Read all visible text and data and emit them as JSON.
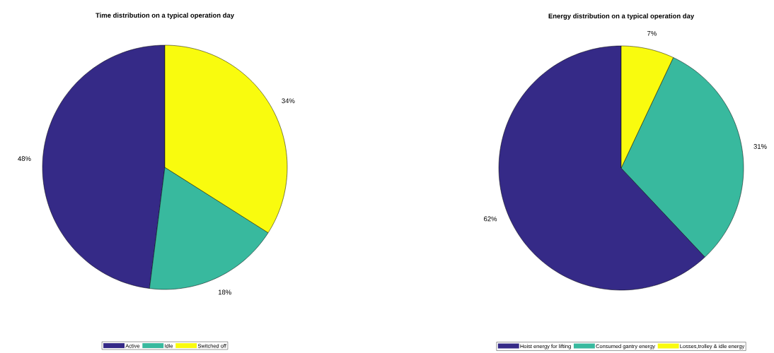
{
  "chart_data": [
    {
      "type": "pie",
      "title": "Time distribution on a typical operation day",
      "categories": [
        "Active",
        "Idle",
        "Switched off"
      ],
      "values": [
        48,
        18,
        34
      ],
      "colors": [
        "#352a87",
        "#38b99e",
        "#f9fb0e"
      ],
      "value_labels": [
        "48%",
        "18%",
        "34%"
      ],
      "legend": "bottom"
    },
    {
      "type": "pie",
      "title": "Energy distribution on a typical operation day",
      "categories": [
        "Hoist energy for lifting",
        "Consumed gantry energy",
        "Losses,trolley & idle energy"
      ],
      "values": [
        62,
        31,
        7
      ],
      "colors": [
        "#352a87",
        "#38b99e",
        "#f9fb0e"
      ],
      "value_labels": [
        "62%",
        "31%",
        "7%"
      ],
      "legend": "bottom"
    }
  ]
}
